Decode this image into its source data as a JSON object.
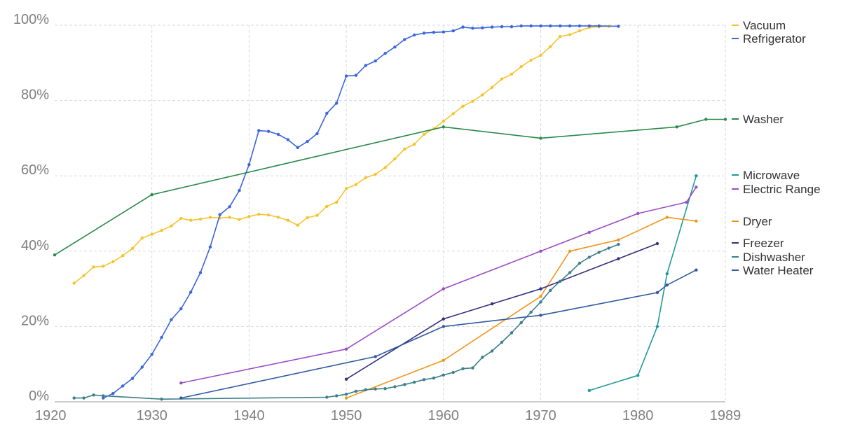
{
  "chart_data": {
    "type": "line",
    "title": "",
    "xlabel": "",
    "ylabel": "",
    "xlim": [
      1920,
      1989
    ],
    "ylim": [
      0,
      100
    ],
    "x_ticks": [
      "1920",
      "1930",
      "1940",
      "1950",
      "1960",
      "1970",
      "1980",
      "1989"
    ],
    "y_ticks": [
      "0%",
      "20%",
      "40%",
      "60%",
      "80%",
      "100%"
    ],
    "grid": true,
    "legend_position": "right",
    "series": [
      {
        "name": "Vacuum",
        "color": "#f4c430",
        "points": [
          [
            1922,
            31.5
          ],
          [
            1923,
            33.5
          ],
          [
            1924,
            35.8
          ],
          [
            1925,
            36
          ],
          [
            1926,
            37.2
          ],
          [
            1927,
            38.8
          ],
          [
            1928,
            40.7
          ],
          [
            1929,
            43.5
          ],
          [
            1930,
            44.5
          ],
          [
            1931,
            45.5
          ],
          [
            1932,
            46.7
          ],
          [
            1933,
            48.7
          ],
          [
            1934,
            48.2
          ],
          [
            1935,
            48.5
          ],
          [
            1936,
            49
          ],
          [
            1937,
            48.8
          ],
          [
            1938,
            49
          ],
          [
            1939,
            48.4
          ],
          [
            1940,
            49.2
          ],
          [
            1941,
            49.8
          ],
          [
            1942,
            49.6
          ],
          [
            1943,
            49
          ],
          [
            1944,
            48.2
          ],
          [
            1945,
            46.9
          ],
          [
            1946,
            48.9
          ],
          [
            1947,
            49.5
          ],
          [
            1948,
            51.9
          ],
          [
            1949,
            53
          ],
          [
            1950,
            56.6
          ],
          [
            1951,
            57.7
          ],
          [
            1952,
            59.5
          ],
          [
            1953,
            60.4
          ],
          [
            1954,
            62.2
          ],
          [
            1955,
            64.5
          ],
          [
            1956,
            67.1
          ],
          [
            1957,
            68.4
          ],
          [
            1958,
            71
          ],
          [
            1959,
            72.5
          ],
          [
            1960,
            74.5
          ],
          [
            1961,
            76.5
          ],
          [
            1962,
            78.5
          ],
          [
            1963,
            79.8
          ],
          [
            1964,
            81.5
          ],
          [
            1965,
            83.5
          ],
          [
            1966,
            85.7
          ],
          [
            1967,
            87
          ],
          [
            1968,
            89
          ],
          [
            1969,
            90.7
          ],
          [
            1970,
            92
          ],
          [
            1971,
            94.3
          ],
          [
            1972,
            97
          ],
          [
            1973,
            97.5
          ],
          [
            1974,
            98.5
          ],
          [
            1975,
            99.4
          ],
          [
            1976,
            99.6
          ],
          [
            1977,
            99.7
          ]
        ]
      },
      {
        "name": "Refrigerator",
        "color": "#3b66db",
        "points": [
          [
            1925,
            1
          ],
          [
            1926,
            2.2
          ],
          [
            1927,
            4.2
          ],
          [
            1928,
            6.2
          ],
          [
            1929,
            9.2
          ],
          [
            1930,
            12.6
          ],
          [
            1931,
            17.1
          ],
          [
            1932,
            21.8
          ],
          [
            1933,
            24.7
          ],
          [
            1934,
            29.1
          ],
          [
            1935,
            34.3
          ],
          [
            1936,
            41.1
          ],
          [
            1937,
            49.7
          ],
          [
            1938,
            51.8
          ],
          [
            1939,
            56.1
          ],
          [
            1940,
            63
          ],
          [
            1941,
            72
          ],
          [
            1942,
            71.8
          ],
          [
            1943,
            71
          ],
          [
            1944,
            69.6
          ],
          [
            1945,
            67.5
          ],
          [
            1946,
            69.1
          ],
          [
            1947,
            71.2
          ],
          [
            1948,
            76.6
          ],
          [
            1949,
            79.3
          ],
          [
            1950,
            86.5
          ],
          [
            1951,
            86.7
          ],
          [
            1952,
            89.3
          ],
          [
            1953,
            90.5
          ],
          [
            1954,
            92.5
          ],
          [
            1955,
            94.2
          ],
          [
            1956,
            96.2
          ],
          [
            1957,
            97.4
          ],
          [
            1958,
            97.9
          ],
          [
            1959,
            98.1
          ],
          [
            1960,
            98.2
          ],
          [
            1961,
            98.5
          ],
          [
            1962,
            99.5
          ],
          [
            1963,
            99.2
          ],
          [
            1964,
            99.3
          ],
          [
            1965,
            99.5
          ],
          [
            1966,
            99.6
          ],
          [
            1967,
            99.6
          ],
          [
            1968,
            99.8
          ],
          [
            1969,
            99.8
          ],
          [
            1970,
            99.8
          ],
          [
            1971,
            99.8
          ],
          [
            1972,
            99.8
          ],
          [
            1973,
            99.8
          ],
          [
            1974,
            99.8
          ],
          [
            1975,
            99.8
          ],
          [
            1976,
            99.8
          ],
          [
            1978,
            99.7
          ]
        ]
      },
      {
        "name": "Washer",
        "color": "#2a8a4a",
        "points": [
          [
            1920,
            39
          ],
          [
            1930,
            55
          ],
          [
            1960,
            73
          ],
          [
            1970,
            70
          ],
          [
            1984,
            73
          ],
          [
            1987,
            75
          ],
          [
            1989,
            75
          ]
        ]
      },
      {
        "name": "Microwave",
        "color": "#1f9b9b",
        "points": [
          [
            1975,
            3
          ],
          [
            1980,
            7
          ],
          [
            1982,
            20
          ],
          [
            1983,
            34
          ],
          [
            1986,
            60
          ]
        ]
      },
      {
        "name": "Electric Range",
        "color": "#9b4dc4",
        "points": [
          [
            1933,
            5
          ],
          [
            1950,
            14
          ],
          [
            1960,
            30
          ],
          [
            1970,
            40
          ],
          [
            1975,
            45
          ],
          [
            1980,
            50
          ],
          [
            1985,
            53
          ],
          [
            1986,
            57
          ]
        ]
      },
      {
        "name": "Dryer",
        "color": "#f0961e",
        "points": [
          [
            1950,
            1
          ],
          [
            1960,
            11
          ],
          [
            1970,
            28
          ],
          [
            1973,
            40
          ],
          [
            1978,
            43
          ],
          [
            1983,
            49
          ],
          [
            1986,
            48
          ]
        ]
      },
      {
        "name": "Freezer",
        "color": "#332f80",
        "points": [
          [
            1950,
            6
          ],
          [
            1960,
            22
          ],
          [
            1965,
            26
          ],
          [
            1970,
            30
          ],
          [
            1978,
            38
          ],
          [
            1982,
            42
          ]
        ]
      },
      {
        "name": "Dishwasher",
        "color": "#3b7f8a",
        "points": [
          [
            1922,
            1
          ],
          [
            1923,
            1
          ],
          [
            1924,
            1.8
          ],
          [
            1925,
            1.6
          ],
          [
            1931,
            0.7
          ],
          [
            1948,
            1.2
          ],
          [
            1949,
            1.6
          ],
          [
            1950,
            2
          ],
          [
            1951,
            2.8
          ],
          [
            1952,
            3.2
          ],
          [
            1953,
            3.4
          ],
          [
            1954,
            3.5
          ],
          [
            1955,
            4
          ],
          [
            1956,
            4.6
          ],
          [
            1957,
            5.2
          ],
          [
            1958,
            5.9
          ],
          [
            1959,
            6.3
          ],
          [
            1960,
            7.1
          ],
          [
            1961,
            7.8
          ],
          [
            1962,
            8.8
          ],
          [
            1963,
            9
          ],
          [
            1964,
            11.8
          ],
          [
            1965,
            13.5
          ],
          [
            1966,
            15.8
          ],
          [
            1967,
            18.3
          ],
          [
            1968,
            21
          ],
          [
            1969,
            23.8
          ],
          [
            1970,
            26.5
          ],
          [
            1971,
            29.6
          ],
          [
            1972,
            32
          ],
          [
            1973,
            34.3
          ],
          [
            1974,
            36.8
          ],
          [
            1975,
            38.4
          ],
          [
            1976,
            39.7
          ],
          [
            1977,
            40.8
          ],
          [
            1978,
            41.8
          ]
        ]
      },
      {
        "name": "Water Heater",
        "color": "#2f5aa0",
        "points": [
          [
            1933,
            1
          ],
          [
            1953,
            12
          ],
          [
            1960,
            20
          ],
          [
            1970,
            23
          ],
          [
            1982,
            29
          ],
          [
            1983,
            31
          ],
          [
            1986,
            35
          ]
        ]
      }
    ]
  }
}
